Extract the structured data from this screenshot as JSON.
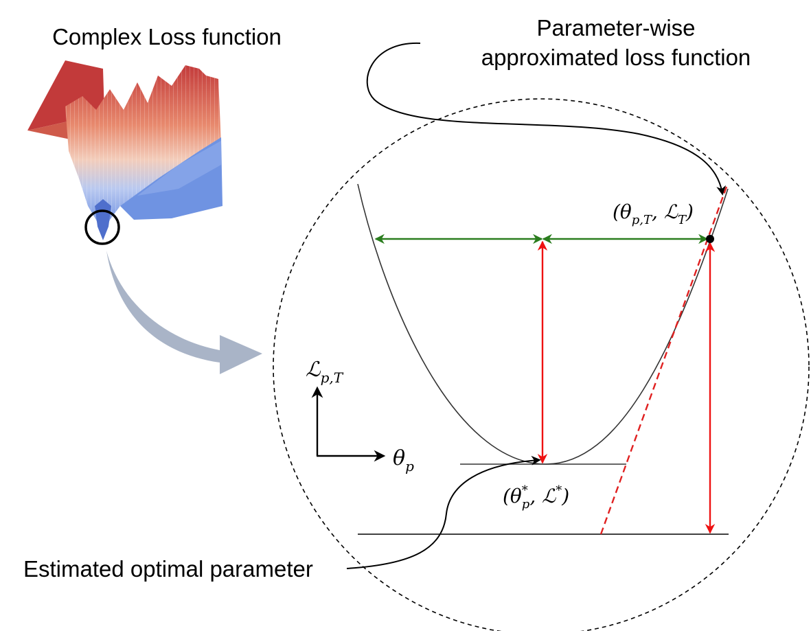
{
  "labels": {
    "complex_loss": "Complex Loss function",
    "approx_loss_line1": "Parameter-wise",
    "approx_loss_line2": "approximated loss function",
    "estimated_optimal": "Estimated optimal parameter",
    "point_current": "(θ",
    "point_current_sub": "p,T",
    "point_current_mid": ", ℒ",
    "point_current_sub2": "T",
    "point_current_end": ")",
    "point_optimal": "(θ",
    "point_optimal_sup": "*",
    "point_optimal_sub": "p",
    "point_optimal_mid": ", ℒ",
    "point_optimal_sup2": "*",
    "point_optimal_end": ")",
    "axis_y": "ℒ",
    "axis_y_sub": "p,T",
    "axis_x": "θ",
    "axis_x_sub": "p"
  },
  "colors": {
    "curve": "#333333",
    "green_arrow": "#2a7d1e",
    "red_arrow": "#ee1111",
    "red_dashed": "#e02020",
    "big_arrow": "#a9b4c7",
    "surface_red": "#c83c3c",
    "surface_blue": "#6a8fe0"
  }
}
